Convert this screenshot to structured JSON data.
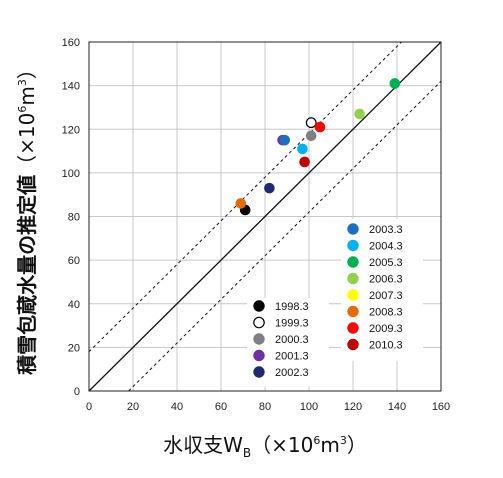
{
  "chart_data": {
    "type": "scatter",
    "xlabel": "水収支W",
    "xlabel_sub": "B",
    "xlabel_unit_open": "（×10",
    "xlabel_unit_exp": "6",
    "xlabel_unit_mid": "m",
    "xlabel_unit_exp2": "3",
    "xlabel_unit_close": "）",
    "ylabel": "積雪包蔵水量の推定値",
    "ylabel_unit_open": "（×10",
    "ylabel_unit_exp": "6",
    "ylabel_unit_mid": "m",
    "ylabel_unit_exp2": "3",
    "ylabel_unit_close": "）",
    "xlim": [
      0,
      160
    ],
    "ylim": [
      0,
      160
    ],
    "x_ticks": [
      "0",
      "20",
      "40",
      "60",
      "80",
      "100",
      "120",
      "140",
      "160"
    ],
    "y_ticks": [
      "0",
      "20",
      "40",
      "60",
      "80",
      "100",
      "120",
      "140",
      "160"
    ],
    "grid": true,
    "reference_lines": [
      {
        "kind": "solid",
        "offset": 0
      },
      {
        "kind": "dotted",
        "offset": 18
      },
      {
        "kind": "dotted",
        "offset": -18
      }
    ],
    "series": [
      {
        "name": "1998.3",
        "color": "#000000",
        "hollow": false,
        "x": 71,
        "y": 83
      },
      {
        "name": "1999.3",
        "color": "#ffffff",
        "hollow": true,
        "x": 101,
        "y": 123
      },
      {
        "name": "2000.3",
        "color": "#808080",
        "hollow": false,
        "x": 101,
        "y": 117
      },
      {
        "name": "2001.3",
        "color": "#7030a0",
        "hollow": false,
        "x": 88,
        "y": 115
      },
      {
        "name": "2002.3",
        "color": "#1f2a6e",
        "hollow": false,
        "x": 82,
        "y": 93
      },
      {
        "name": "2003.3",
        "color": "#1f6fbf",
        "hollow": false,
        "x": 89,
        "y": 115
      },
      {
        "name": "2004.3",
        "color": "#00b0f0",
        "hollow": false,
        "x": 97,
        "y": 111
      },
      {
        "name": "2005.3",
        "color": "#00b050",
        "hollow": false,
        "x": 139,
        "y": 141
      },
      {
        "name": "2006.3",
        "color": "#92d050",
        "hollow": false,
        "x": 123,
        "y": 127
      },
      {
        "name": "2007.3",
        "color": "#ffff00",
        "hollow": false,
        "x": null,
        "y": null
      },
      {
        "name": "2008.3",
        "color": "#e36c0a",
        "hollow": false,
        "x": 69,
        "y": 86
      },
      {
        "name": "2009.3",
        "color": "#ff0000",
        "hollow": false,
        "x": 105,
        "y": 121
      },
      {
        "name": "2010.3",
        "color": "#c00000",
        "hollow": false,
        "x": 98,
        "y": 105
      }
    ],
    "legend_groups": [
      {
        "placement": "lower-middle",
        "items": [
          "1998.3",
          "1999.3",
          "2000.3",
          "2001.3",
          "2002.3"
        ]
      },
      {
        "placement": "right-middle",
        "items": [
          "2003.3",
          "2004.3",
          "2005.3",
          "2006.3",
          "2007.3",
          "2008.3",
          "2009.3",
          "2010.3"
        ]
      }
    ]
  }
}
